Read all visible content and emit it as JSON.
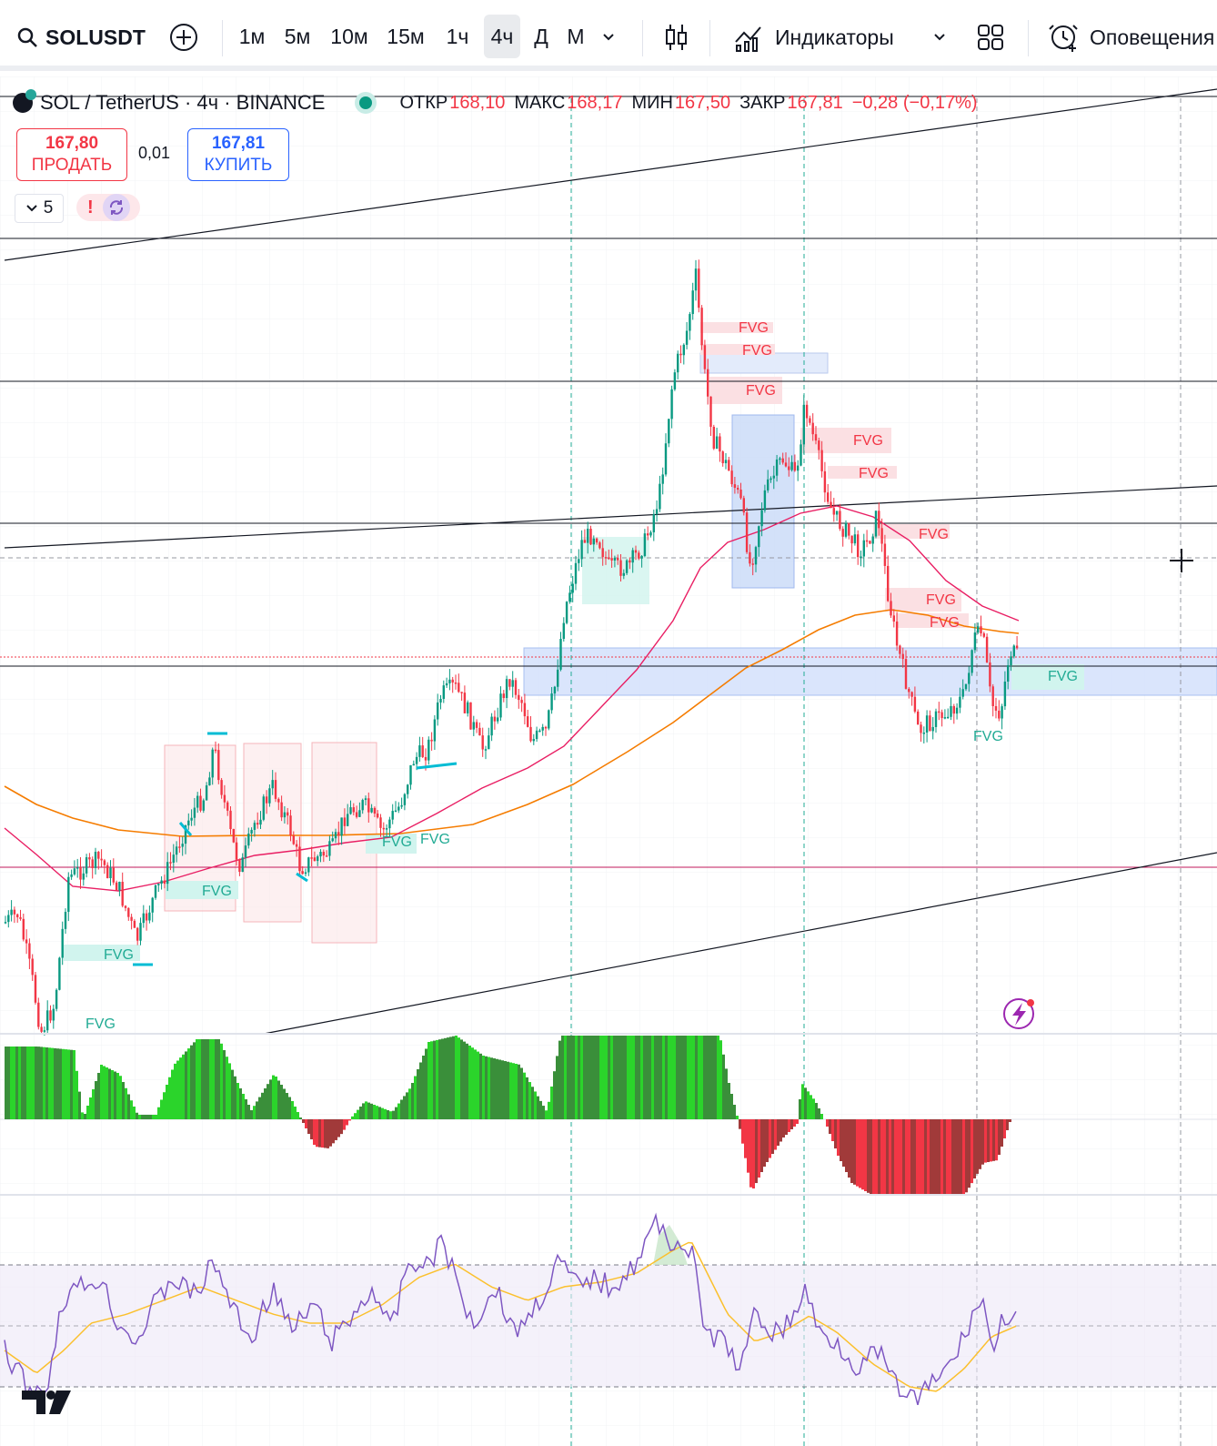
{
  "toolbar": {
    "symbol": "SOLUSDT",
    "timeframes": [
      "1м",
      "5м",
      "10м",
      "15м",
      "1ч",
      "4ч",
      "Д",
      "М"
    ],
    "active_timeframe": "4ч",
    "indicators_label": "Индикаторы",
    "alerts_label": "Оповещения"
  },
  "legend": {
    "title": "SOL / TetherUS · 4ч · BINANCE",
    "open_label": "ОТКР",
    "open_value": "168,10",
    "high_label": "МАКС",
    "high_value": "168,17",
    "low_label": "МИН",
    "low_value": "167,50",
    "close_label": "ЗАКР",
    "close_value": "167,81",
    "change": "−0,28 (−0,17%)"
  },
  "trade": {
    "sell_price": "167,80",
    "sell_label": "ПРОДАТЬ",
    "spread": "0,01",
    "buy_price": "167,81",
    "buy_label": "КУПИТЬ"
  },
  "indicators_toggle": {
    "count": "5"
  },
  "fvg_label": "FVG",
  "colors": {
    "bull": "#22ab94",
    "bear": "#f23645",
    "accent": "#2962ff",
    "ma_fast": "#e91e63",
    "ma_slow": "#f57c00",
    "rsi": "#7e57c2",
    "rsi_ma": "#fbc02d"
  },
  "icons": [
    "search-icon",
    "add-symbol-icon",
    "chevron-down-icon",
    "candles-icon",
    "indicators-icon",
    "layout-icon",
    "alert-icon",
    "crosshair-icon",
    "tradingview-logo",
    "lightning-icon"
  ]
}
